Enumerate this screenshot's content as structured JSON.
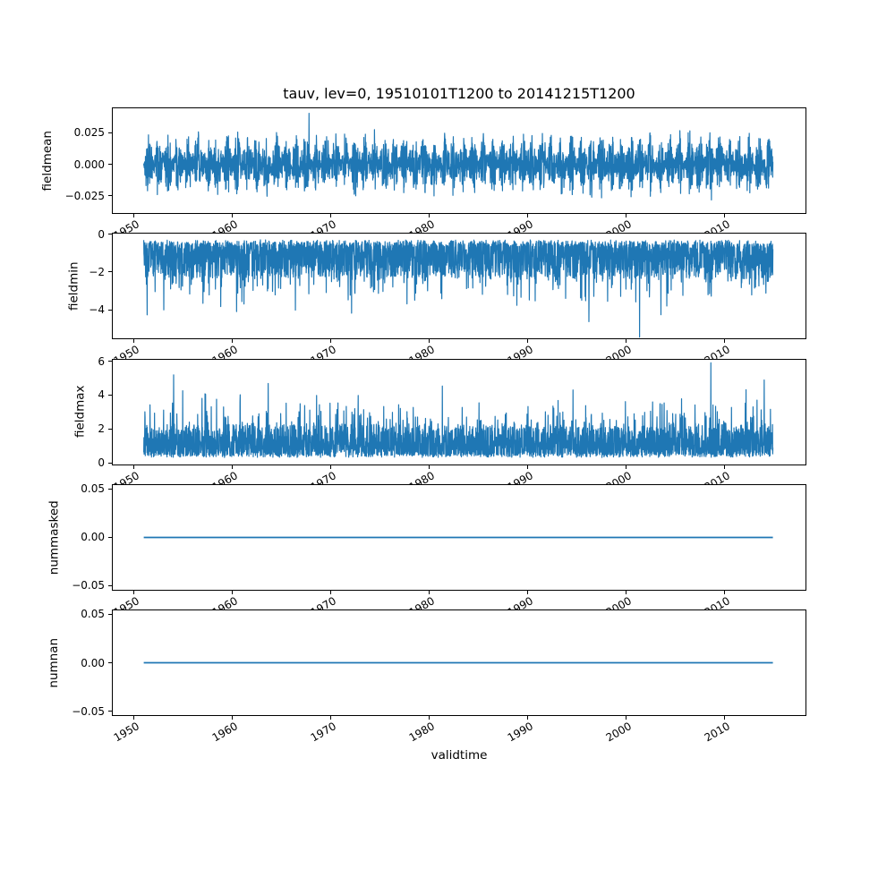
{
  "figure": {
    "title": "tauv, lev=0, 19510101T1200 to 20141215T1200",
    "variable": "tauv",
    "level": "lev=0",
    "time_start": "19510101T1200",
    "time_end": "20141215T1200",
    "background_color": "#ffffff",
    "line_color": "#1f77b4",
    "axis_color": "#000000"
  },
  "x_axis": {
    "label": "validtime",
    "lim": [
      1947.76,
      2018.36
    ],
    "tick_values": [
      1950,
      1960,
      1970,
      1980,
      1990,
      2000,
      2010
    ],
    "tick_labels": [
      "1950",
      "1960",
      "1970",
      "1980",
      "1990",
      "2000",
      "2010"
    ],
    "tick_rotation_deg": 30,
    "data_start_year": 1951.0,
    "data_end_year": 2014.955
  },
  "chart_data": [
    {
      "name": "fieldmean",
      "type": "line",
      "ylabel": "fieldmean",
      "ylim": [
        -0.0395,
        0.0452
      ],
      "ytick_values": [
        0.025,
        0.0,
        -0.025
      ],
      "ytick_labels": [
        "0.025",
        "0.000",
        "−0.025"
      ],
      "summary": {
        "pattern": "dense high-frequency noise around zero with annual-cycle amplitude modulation",
        "typical_band": [
          -0.028,
          0.031
        ],
        "min": -0.0345,
        "max": 0.0408
      },
      "gen": {
        "kind": "seasonal_sym",
        "seed": 42,
        "n": 3328,
        "base_amp": 0.0145,
        "seasonal_amp": 0.0085,
        "phase": 0.25,
        "noise": 0.005,
        "spike_prob": 0.004,
        "spike_gain": 1.35,
        "clamp": [
          -0.0345,
          0.0408
        ],
        "forced": [
          {
            "t": 1967.8,
            "v": 0.0405
          }
        ]
      }
    },
    {
      "name": "fieldmin",
      "type": "line",
      "ylabel": "fieldmin",
      "ylim": [
        -5.56,
        0.055
      ],
      "ytick_values": [
        0,
        -2,
        -4
      ],
      "ytick_labels": [
        "0",
        "−2",
        "−4"
      ],
      "summary": {
        "pattern": "dense negative noise band with downward spikes",
        "typical_band": [
          -3.0,
          -0.3
        ],
        "min": -5.45,
        "max": -0.3
      },
      "gen": {
        "kind": "band",
        "sign": -1,
        "seed": 7,
        "n": 3328,
        "offset": 0.32,
        "span": 1.9,
        "power": 1.7,
        "jitter": 0.25,
        "spikes": [
          {
            "prob": 0.1,
            "lo": 0.5,
            "rng": 1.3
          },
          {
            "prob": 0.006,
            "lo": 1.4,
            "rng": 1.2
          }
        ],
        "clamp_abs": 5.45,
        "forced": [
          {
            "t": 2001.4,
            "v": -5.45
          }
        ]
      }
    },
    {
      "name": "fieldmax",
      "type": "line",
      "ylabel": "fieldmax",
      "ylim": [
        -0.13,
        6.16
      ],
      "ytick_values": [
        0,
        2,
        4,
        6
      ],
      "ytick_labels": [
        "0",
        "2",
        "4",
        "6"
      ],
      "summary": {
        "pattern": "dense positive noise band with upward spikes",
        "typical_band": [
          0.3,
          3.0
        ],
        "min": 0.25,
        "max": 5.93
      },
      "gen": {
        "kind": "band",
        "sign": 1,
        "seed": 9,
        "n": 3328,
        "offset": 0.33,
        "span": 1.8,
        "power": 1.8,
        "jitter": 0.25,
        "spikes": [
          {
            "prob": 0.1,
            "lo": 0.5,
            "rng": 1.4
          },
          {
            "prob": 0.006,
            "lo": 1.3,
            "rng": 1.3
          }
        ],
        "clamp_abs": 5.93,
        "forced": [
          {
            "t": 2008.65,
            "v": 5.93
          }
        ]
      }
    },
    {
      "name": "nummasked",
      "type": "line",
      "ylabel": "nummasked",
      "ylim": [
        -0.055,
        0.055
      ],
      "ytick_values": [
        0.05,
        0.0,
        -0.05
      ],
      "ytick_labels": [
        "0.05",
        "0.00",
        "−0.05"
      ],
      "summary": {
        "pattern": "constant flat line",
        "constant_value": 0.0
      },
      "gen": {
        "kind": "constant",
        "value": 0.0,
        "n": 2
      }
    },
    {
      "name": "numnan",
      "type": "line",
      "ylabel": "numnan",
      "ylim": [
        -0.055,
        0.055
      ],
      "ytick_values": [
        0.05,
        0.0,
        -0.05
      ],
      "ytick_labels": [
        "0.05",
        "0.00",
        "−0.05"
      ],
      "summary": {
        "pattern": "constant flat line",
        "constant_value": 0.0
      },
      "gen": {
        "kind": "constant",
        "value": 0.0,
        "n": 2
      }
    }
  ]
}
